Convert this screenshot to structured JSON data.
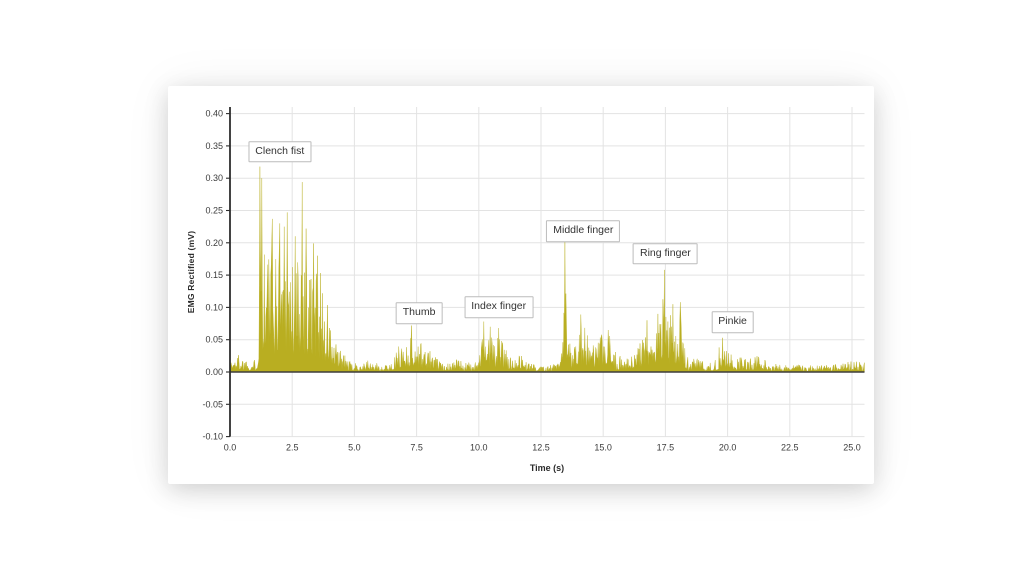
{
  "page": {
    "background_color": "#ffffff",
    "card_background": "#ffffff"
  },
  "chart_data": {
    "type": "area",
    "title": "",
    "xlabel": "Time (s)",
    "ylabel": "EMG Rectified (mV)",
    "xlim": [
      0,
      25.5
    ],
    "ylim": [
      -0.1,
      0.41
    ],
    "grid": true,
    "legend": null,
    "xticks": [
      0,
      2.5,
      5,
      7.5,
      10,
      12.5,
      15,
      17.5,
      20,
      22.5,
      25
    ],
    "xtick_labels": [
      "0.0",
      "2.5",
      "5.0",
      "7.5",
      "10.0",
      "12.5",
      "15.0",
      "17.5",
      "20.0",
      "22.5",
      "25.0"
    ],
    "yticks": [
      -0.1,
      -0.05,
      0,
      0.05,
      0.1,
      0.15,
      0.2,
      0.25,
      0.3,
      0.35,
      0.4
    ],
    "ytick_labels": [
      "-0.10",
      "-0.05",
      "0.00",
      "0.05",
      "0.10",
      "0.15",
      "0.20",
      "0.25",
      "0.30",
      "0.35",
      "0.40"
    ],
    "colors": {
      "trace": "#b9ae21",
      "grid": "#e3e3e3",
      "spine": "#2e2e2e",
      "zero_line": "#3d3d3d",
      "tick_text": "#3b3b3b",
      "annotation_border": "#bcbcbc",
      "annotation_text": "#333333"
    },
    "annotations": [
      {
        "label": "Clench fist",
        "t": 2.0,
        "mV": 0.341
      },
      {
        "label": "Thumb",
        "t": 7.6,
        "mV": 0.091
      },
      {
        "label": "Index finger",
        "t": 10.8,
        "mV": 0.1
      },
      {
        "label": "Middle finger",
        "t": 14.2,
        "mV": 0.218
      },
      {
        "label": "Ring finger",
        "t": 17.5,
        "mV": 0.183
      },
      {
        "label": "Pinkie",
        "t": 20.2,
        "mV": 0.077
      }
    ],
    "bursts": [
      {
        "label": "Clench fist",
        "t_start": 1.1,
        "t_end": 4.6,
        "peak_mV": 0.318,
        "peak_t": 1.2
      },
      {
        "label": "Thumb",
        "t_start": 6.7,
        "t_end": 8.3,
        "peak_mV": 0.072,
        "peak_t": 7.3
      },
      {
        "label": "Index finger",
        "t_start": 10.0,
        "t_end": 11.2,
        "peak_mV": 0.078,
        "peak_t": 10.2
      },
      {
        "label": "Middle finger",
        "t_start": 13.35,
        "t_end": 15.45,
        "peak_mV": 0.203,
        "peak_t": 13.45
      },
      {
        "label": "Ring finger",
        "t_start": 16.4,
        "t_end": 18.35,
        "peak_mV": 0.16,
        "peak_t": 17.45
      },
      {
        "label": "Pinkie",
        "t_start": 19.6,
        "t_end": 20.15,
        "peak_mV": 0.053,
        "peak_t": 19.8
      }
    ],
    "envelope": [
      [
        0,
        0.018
      ],
      [
        0.3,
        0.03
      ],
      [
        0.55,
        0.025
      ],
      [
        0.85,
        0.016
      ],
      [
        1.05,
        0.022
      ],
      [
        1.15,
        0.06
      ],
      [
        1.2,
        0.3
      ],
      [
        1.3,
        0.28
      ],
      [
        1.45,
        0.2
      ],
      [
        1.6,
        0.22
      ],
      [
        1.75,
        0.21
      ],
      [
        1.9,
        0.2
      ],
      [
        2.0,
        0.22
      ],
      [
        2.15,
        0.21
      ],
      [
        2.3,
        0.23
      ],
      [
        2.45,
        0.2
      ],
      [
        2.6,
        0.19
      ],
      [
        2.75,
        0.2
      ],
      [
        2.9,
        0.27
      ],
      [
        3.0,
        0.21
      ],
      [
        3.1,
        0.19
      ],
      [
        3.25,
        0.185
      ],
      [
        3.4,
        0.18
      ],
      [
        3.55,
        0.165
      ],
      [
        3.7,
        0.15
      ],
      [
        3.85,
        0.13
      ],
      [
        4.0,
        0.09
      ],
      [
        4.15,
        0.05
      ],
      [
        4.3,
        0.042
      ],
      [
        4.5,
        0.033
      ],
      [
        4.7,
        0.024
      ],
      [
        4.9,
        0.012
      ],
      [
        5.2,
        0.016
      ],
      [
        5.5,
        0.018
      ],
      [
        5.8,
        0.015
      ],
      [
        6.1,
        0.011
      ],
      [
        6.4,
        0.013
      ],
      [
        6.6,
        0.02
      ],
      [
        6.75,
        0.042
      ],
      [
        6.9,
        0.05
      ],
      [
        7.05,
        0.045
      ],
      [
        7.2,
        0.055
      ],
      [
        7.35,
        0.06
      ],
      [
        7.5,
        0.048
      ],
      [
        7.65,
        0.05
      ],
      [
        7.8,
        0.04
      ],
      [
        7.95,
        0.038
      ],
      [
        8.15,
        0.03
      ],
      [
        8.3,
        0.022
      ],
      [
        8.5,
        0.014
      ],
      [
        8.8,
        0.017
      ],
      [
        9.1,
        0.02
      ],
      [
        9.4,
        0.016
      ],
      [
        9.7,
        0.014
      ],
      [
        9.95,
        0.018
      ],
      [
        10.05,
        0.045
      ],
      [
        10.2,
        0.065
      ],
      [
        10.35,
        0.055
      ],
      [
        10.5,
        0.06
      ],
      [
        10.65,
        0.048
      ],
      [
        10.8,
        0.058
      ],
      [
        10.95,
        0.052
      ],
      [
        11.1,
        0.035
      ],
      [
        11.2,
        0.02
      ],
      [
        11.35,
        0.028
      ],
      [
        11.5,
        0.034
      ],
      [
        11.65,
        0.03
      ],
      [
        11.8,
        0.022
      ],
      [
        11.95,
        0.015
      ],
      [
        12.2,
        0.012
      ],
      [
        12.5,
        0.014
      ],
      [
        12.8,
        0.011
      ],
      [
        13.1,
        0.014
      ],
      [
        13.3,
        0.018
      ],
      [
        13.4,
        0.09
      ],
      [
        13.47,
        0.17
      ],
      [
        13.55,
        0.07
      ],
      [
        13.7,
        0.05
      ],
      [
        13.85,
        0.055
      ],
      [
        14.0,
        0.065
      ],
      [
        14.1,
        0.08
      ],
      [
        14.25,
        0.075
      ],
      [
        14.4,
        0.055
      ],
      [
        14.55,
        0.04
      ],
      [
        14.7,
        0.045
      ],
      [
        14.85,
        0.055
      ],
      [
        15.0,
        0.06
      ],
      [
        15.15,
        0.05
      ],
      [
        15.3,
        0.058
      ],
      [
        15.45,
        0.035
      ],
      [
        15.6,
        0.025
      ],
      [
        15.8,
        0.028
      ],
      [
        16.0,
        0.022
      ],
      [
        16.2,
        0.026
      ],
      [
        16.35,
        0.035
      ],
      [
        16.5,
        0.05
      ],
      [
        16.65,
        0.06
      ],
      [
        16.8,
        0.07
      ],
      [
        16.95,
        0.065
      ],
      [
        17.1,
        0.06
      ],
      [
        17.25,
        0.08
      ],
      [
        17.4,
        0.12
      ],
      [
        17.5,
        0.1
      ],
      [
        17.65,
        0.09
      ],
      [
        17.8,
        0.095
      ],
      [
        17.95,
        0.085
      ],
      [
        18.1,
        0.095
      ],
      [
        18.2,
        0.065
      ],
      [
        18.3,
        0.04
      ],
      [
        18.45,
        0.018
      ],
      [
        18.65,
        0.024
      ],
      [
        18.9,
        0.02
      ],
      [
        19.15,
        0.014
      ],
      [
        19.4,
        0.016
      ],
      [
        19.55,
        0.02
      ],
      [
        19.65,
        0.038
      ],
      [
        19.8,
        0.048
      ],
      [
        19.95,
        0.04
      ],
      [
        20.1,
        0.03
      ],
      [
        20.25,
        0.02
      ],
      [
        20.45,
        0.024
      ],
      [
        20.65,
        0.022
      ],
      [
        20.85,
        0.024
      ],
      [
        21.05,
        0.026
      ],
      [
        21.25,
        0.024
      ],
      [
        21.45,
        0.02
      ],
      [
        21.7,
        0.014
      ],
      [
        22.0,
        0.012
      ],
      [
        22.4,
        0.013
      ],
      [
        22.8,
        0.011
      ],
      [
        23.2,
        0.012
      ],
      [
        23.6,
        0.01
      ],
      [
        24.0,
        0.011
      ],
      [
        24.4,
        0.012
      ],
      [
        24.7,
        0.015
      ],
      [
        25.0,
        0.017
      ],
      [
        25.25,
        0.018
      ],
      [
        25.5,
        0.015
      ]
    ],
    "peaks": [
      [
        1.2,
        0.318
      ],
      [
        1.28,
        0.3
      ],
      [
        1.7,
        0.237
      ],
      [
        2.0,
        0.23
      ],
      [
        2.18,
        0.225
      ],
      [
        2.3,
        0.247
      ],
      [
        2.62,
        0.21
      ],
      [
        2.9,
        0.294
      ],
      [
        3.05,
        0.222
      ],
      [
        3.35,
        0.199
      ],
      [
        3.52,
        0.18
      ],
      [
        7.3,
        0.072
      ],
      [
        10.2,
        0.078
      ],
      [
        10.45,
        0.07
      ],
      [
        10.8,
        0.068
      ],
      [
        13.45,
        0.203
      ],
      [
        14.1,
        0.089
      ],
      [
        15.2,
        0.065
      ],
      [
        16.75,
        0.08
      ],
      [
        17.2,
        0.09
      ],
      [
        17.45,
        0.158
      ],
      [
        17.8,
        0.105
      ],
      [
        18.1,
        0.108
      ],
      [
        19.8,
        0.053
      ]
    ],
    "noise_seed": 1337,
    "sample_dt": 0.02
  }
}
